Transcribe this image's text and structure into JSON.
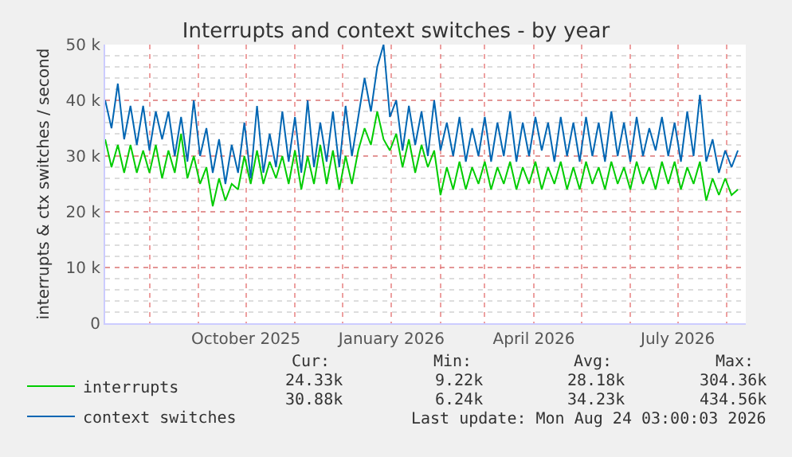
{
  "chart_data": {
    "type": "line",
    "title": "Interrupts and context switches - by year",
    "ylabel": "interrupts & ctx switches / second",
    "x": [
      "2025-07-04",
      "2025-07-08",
      "2025-07-12",
      "2025-07-16",
      "2025-07-20",
      "2025-07-24",
      "2025-07-28",
      "2025-08-01",
      "2025-08-05",
      "2025-08-09",
      "2025-08-13",
      "2025-08-17",
      "2025-08-21",
      "2025-08-25",
      "2025-08-29",
      "2025-09-02",
      "2025-09-06",
      "2025-09-10",
      "2025-09-14",
      "2025-09-18",
      "2025-09-22",
      "2025-09-26",
      "2025-09-30",
      "2025-10-04",
      "2025-10-08",
      "2025-10-12",
      "2025-10-16",
      "2025-10-20",
      "2025-10-24",
      "2025-10-28",
      "2025-11-01",
      "2025-11-05",
      "2025-11-09",
      "2025-11-13",
      "2025-11-17",
      "2025-11-21",
      "2025-11-25",
      "2025-11-29",
      "2025-12-03",
      "2025-12-07",
      "2025-12-11",
      "2025-12-15",
      "2025-12-19",
      "2025-12-23",
      "2025-12-27",
      "2025-12-31",
      "2026-01-04",
      "2026-01-08",
      "2026-01-12",
      "2026-01-16",
      "2026-01-20",
      "2026-01-24",
      "2026-01-28",
      "2026-02-01",
      "2026-02-05",
      "2026-02-09",
      "2026-02-13",
      "2026-02-17",
      "2026-02-21",
      "2026-02-25",
      "2026-03-01",
      "2026-03-05",
      "2026-03-09",
      "2026-03-13",
      "2026-03-17",
      "2026-03-21",
      "2026-03-25",
      "2026-03-29",
      "2026-04-02",
      "2026-04-06",
      "2026-04-10",
      "2026-04-14",
      "2026-04-18",
      "2026-04-22",
      "2026-04-26",
      "2026-04-30",
      "2026-05-04",
      "2026-05-08",
      "2026-05-12",
      "2026-05-16",
      "2026-05-20",
      "2026-05-24",
      "2026-05-28",
      "2026-06-01",
      "2026-06-05",
      "2026-06-09",
      "2026-06-13",
      "2026-06-17",
      "2026-06-21",
      "2026-06-25",
      "2026-06-29",
      "2026-07-03",
      "2026-07-07",
      "2026-07-11",
      "2026-07-15",
      "2026-07-19",
      "2026-07-23",
      "2026-07-27",
      "2026-07-31",
      "2026-08-04",
      "2026-08-08"
    ],
    "series": [
      {
        "name": "interrupts",
        "color": "#00cc00",
        "values": [
          33000,
          28000,
          32000,
          27000,
          32000,
          27000,
          31000,
          27000,
          32000,
          26000,
          31000,
          27000,
          34000,
          26000,
          30000,
          25000,
          28000,
          21000,
          26000,
          22000,
          25000,
          24000,
          30000,
          25000,
          31000,
          25000,
          29000,
          26000,
          30000,
          25000,
          31000,
          24000,
          30000,
          25000,
          32000,
          25000,
          31000,
          24000,
          30000,
          25000,
          31000,
          35000,
          32000,
          38000,
          33000,
          31000,
          34000,
          28000,
          33000,
          27000,
          32000,
          28000,
          31000,
          23000,
          28000,
          24000,
          29000,
          24000,
          28000,
          25000,
          29000,
          24000,
          28000,
          25000,
          29000,
          24000,
          28000,
          25000,
          29000,
          24000,
          28000,
          25000,
          29000,
          24000,
          28000,
          24000,
          29000,
          25000,
          28000,
          24000,
          29000,
          25000,
          28000,
          24000,
          29000,
          25000,
          28000,
          24000,
          29000,
          25000,
          29000,
          24000,
          28000,
          25000,
          29000,
          22000,
          26000,
          23000,
          26000,
          23000,
          24000
        ]
      },
      {
        "name": "context switches",
        "color": "#0066b3",
        "values": [
          40000,
          35000,
          43000,
          33000,
          39000,
          32000,
          39000,
          31000,
          38000,
          33000,
          38000,
          30000,
          37000,
          29000,
          40000,
          30000,
          35000,
          27000,
          33000,
          25000,
          32000,
          27000,
          36000,
          26000,
          39000,
          27000,
          34000,
          28000,
          38000,
          29000,
          37000,
          27000,
          40000,
          28000,
          36000,
          29000,
          38000,
          28000,
          39000,
          30000,
          37000,
          44000,
          38000,
          46000,
          50000,
          37000,
          40000,
          31000,
          39000,
          32000,
          38000,
          30000,
          40000,
          31000,
          36000,
          30000,
          37000,
          29000,
          35000,
          30000,
          37000,
          29000,
          36000,
          30000,
          38000,
          29000,
          36000,
          30000,
          37000,
          31000,
          36000,
          29000,
          37000,
          30000,
          36000,
          29000,
          37000,
          30000,
          36000,
          29000,
          38000,
          30000,
          36000,
          29000,
          37000,
          30000,
          35000,
          31000,
          37000,
          30000,
          36000,
          29000,
          38000,
          30000,
          41000,
          29000,
          33000,
          27000,
          31000,
          28000,
          31000
        ]
      }
    ],
    "xlim": [
      "2025-07-04",
      "2026-08-13"
    ],
    "xticks": [
      {
        "value": "2025-08-01",
        "label": null
      },
      {
        "value": "2025-09-01",
        "label": null
      },
      {
        "value": "2025-10-01",
        "label": "October 2025"
      },
      {
        "value": "2025-11-01",
        "label": null
      },
      {
        "value": "2025-12-01",
        "label": null
      },
      {
        "value": "2026-01-01",
        "label": "January 2026"
      },
      {
        "value": "2026-02-01",
        "label": null
      },
      {
        "value": "2026-03-01",
        "label": null
      },
      {
        "value": "2026-04-01",
        "label": "April 2026"
      },
      {
        "value": "2026-05-01",
        "label": null
      },
      {
        "value": "2026-06-01",
        "label": null
      },
      {
        "value": "2026-07-01",
        "label": "July 2026"
      },
      {
        "value": "2026-08-01",
        "label": null
      }
    ],
    "ylim": [
      0,
      50000
    ],
    "yticks": [
      0,
      {
        "value": 10000,
        "label": "10 k"
      },
      {
        "value": 20000,
        "label": "20 k"
      },
      {
        "value": 30000,
        "label": "30 k"
      },
      {
        "value": 40000,
        "label": "40 k"
      },
      {
        "value": 50000,
        "label": "50 k"
      }
    ],
    "grid": true,
    "legend": "bottom left",
    "annotations": [
      "Cur:",
      "Min:",
      "Avg:",
      "Max:",
      "24.33k",
      "9.22k",
      "28.18k",
      "304.36k",
      "30.88k",
      "6.24k",
      "34.23k",
      "434.56k",
      "Last update: Mon Aug 24 03:00:03 2026"
    ]
  }
}
